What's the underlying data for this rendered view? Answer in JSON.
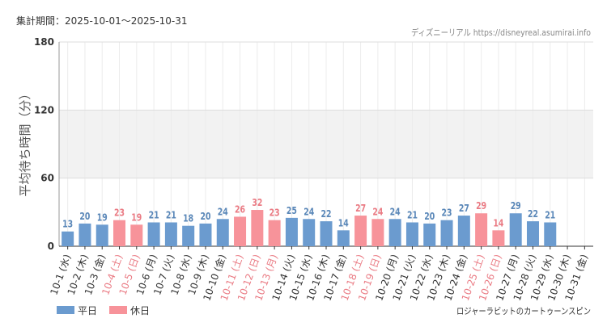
{
  "header": {
    "period": "集計期間：2025-10-01～2025-10-31",
    "source": "ディズニーリアル https://disneyreal.asumirai.info"
  },
  "footer": {
    "attraction": "ロジャーラビットのカートゥーンスピン"
  },
  "colors": {
    "weekday": "#6b9bcf",
    "holiday": "#f7939a",
    "weekday_label": "#5a87b8",
    "holiday_label": "#ea7b84",
    "band": "#f2f2f2",
    "grid": "#dddddd"
  },
  "chart_data": {
    "type": "bar",
    "ylabel": "平均待ち時間（分）",
    "ylim": [
      0,
      180
    ],
    "yticks": [
      0,
      60,
      120,
      180
    ],
    "shaded_band": [
      60,
      120
    ],
    "legend": {
      "placement": "bottom-left",
      "entries": [
        {
          "name": "平日",
          "key": "weekday"
        },
        {
          "name": "休日",
          "key": "holiday"
        }
      ]
    },
    "categories": [
      "10-1 (水)",
      "10-2 (木)",
      "10-3 (金)",
      "10-4 (土)",
      "10-5 (日)",
      "10-6 (月)",
      "10-7 (火)",
      "10-8 (水)",
      "10-9 (木)",
      "10-10 (金)",
      "10-11 (土)",
      "10-12 (日)",
      "10-13 (月)",
      "10-14 (火)",
      "10-15 (水)",
      "10-16 (木)",
      "10-17 (金)",
      "10-18 (土)",
      "10-19 (日)",
      "10-20 (月)",
      "10-21 (火)",
      "10-22 (水)",
      "10-23 (木)",
      "10-24 (金)",
      "10-25 (土)",
      "10-26 (日)",
      "10-27 (月)",
      "10-28 (火)",
      "10-29 (水)",
      "10-30 (木)",
      "10-31 (金)"
    ],
    "values": [
      13,
      20,
      19,
      23,
      19,
      21,
      21,
      18,
      20,
      24,
      26,
      32,
      23,
      25,
      24,
      22,
      14,
      27,
      24,
      24,
      21,
      20,
      23,
      27,
      29,
      14,
      29,
      22,
      21,
      null,
      null
    ],
    "day_type": [
      "weekday",
      "weekday",
      "weekday",
      "holiday",
      "holiday",
      "weekday",
      "weekday",
      "weekday",
      "weekday",
      "weekday",
      "holiday",
      "holiday",
      "holiday",
      "weekday",
      "weekday",
      "weekday",
      "weekday",
      "holiday",
      "holiday",
      "weekday",
      "weekday",
      "weekday",
      "weekday",
      "weekday",
      "holiday",
      "holiday",
      "weekday",
      "weekday",
      "weekday",
      "weekday",
      "weekday"
    ]
  }
}
